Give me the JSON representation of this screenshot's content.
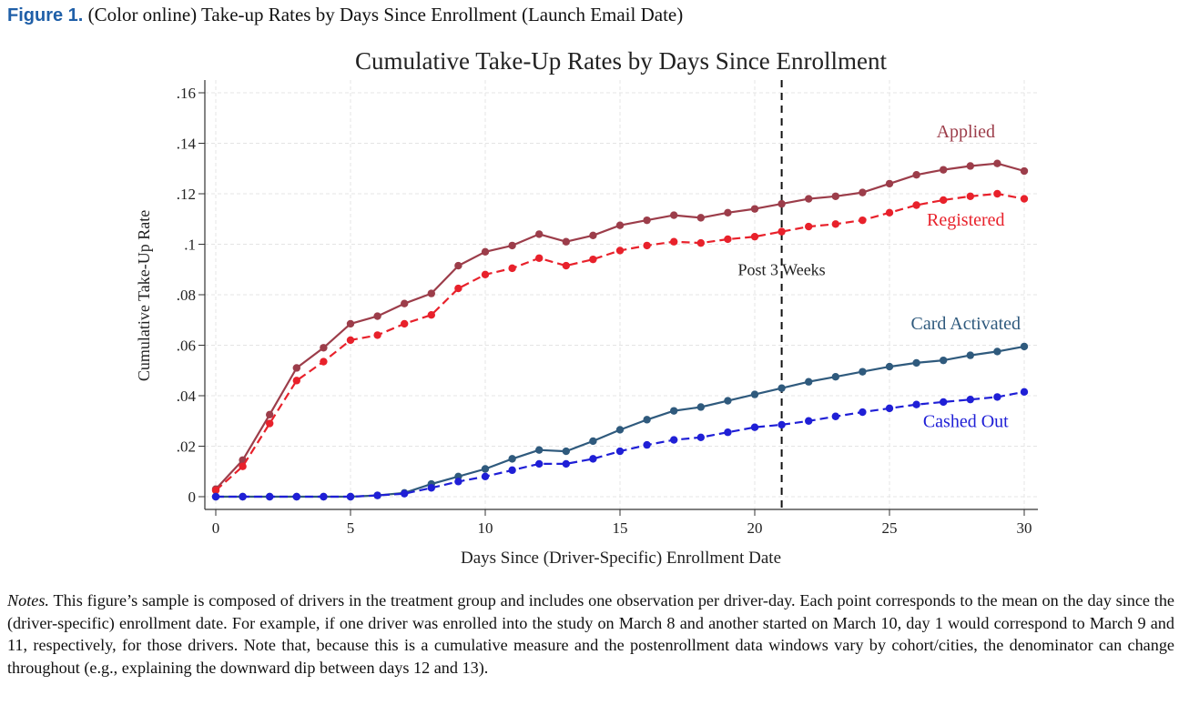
{
  "caption": {
    "label": "Figure 1.",
    "text": "(Color online) Take-up Rates by Days Since Enrollment (Launch Email Date)"
  },
  "notes": {
    "label": "Notes.",
    "text": "This figure’s sample is composed of drivers in the treatment group and includes one observation per driver-day. Each point corresponds to the mean on the day since the (driver-specific) enrollment date. For example, if one driver was enrolled into the study on March 8 and another started on March 10, day 1 would correspond to March 9 and 11, respectively, for those drivers. Note that, because this is a cumulative measure and the postenrollment data windows vary by cohort/cities, the denominator can change throughout (e.g., explaining the downward dip between days 12 and 13)."
  },
  "chart_data": {
    "type": "line",
    "title": "Cumulative Take-Up Rates by Days Since Enrollment",
    "xlabel": "Days Since (Driver-Specific) Enrollment Date",
    "ylabel": "Cumulative Take-Up Rate",
    "xlim": [
      0,
      30
    ],
    "ylim": [
      0,
      0.16
    ],
    "xticks": [
      0,
      5,
      10,
      15,
      20,
      25,
      30
    ],
    "xtick_labels": [
      "0",
      "5",
      "10",
      "15",
      "20",
      "25",
      "30"
    ],
    "yticks": [
      0,
      0.02,
      0.04,
      0.06,
      0.08,
      0.1,
      0.12,
      0.14,
      0.16
    ],
    "ytick_labels": [
      "0",
      ".02",
      ".04",
      ".06",
      ".08",
      ".1",
      ".12",
      ".14",
      ".16"
    ],
    "grid": true,
    "vline": {
      "x": 21,
      "label": "Post 3 Weeks",
      "label_y": 0.09
    },
    "x": [
      0,
      1,
      2,
      3,
      4,
      5,
      6,
      7,
      8,
      9,
      10,
      11,
      12,
      13,
      14,
      15,
      16,
      17,
      18,
      19,
      20,
      21,
      22,
      23,
      24,
      25,
      26,
      27,
      28,
      29,
      30
    ],
    "series": [
      {
        "name": "Applied",
        "color": "#9c3d4a",
        "dash": false,
        "label_at": [
          28,
          0.1445
        ],
        "values": [
          0.003,
          0.0145,
          0.0325,
          0.051,
          0.059,
          0.0685,
          0.0715,
          0.0765,
          0.0805,
          0.0915,
          0.097,
          0.0995,
          0.104,
          0.101,
          0.1035,
          0.1075,
          0.1095,
          0.1115,
          0.1105,
          0.1125,
          0.114,
          0.116,
          0.118,
          0.119,
          0.1205,
          0.124,
          0.1275,
          0.1295,
          0.131,
          0.132,
          0.129
        ]
      },
      {
        "name": "Registered",
        "color": "#e8212b",
        "dash": true,
        "label_at": [
          28,
          0.1095
        ],
        "values": [
          0.0025,
          0.012,
          0.029,
          0.046,
          0.0535,
          0.062,
          0.064,
          0.0685,
          0.072,
          0.0825,
          0.088,
          0.0905,
          0.0945,
          0.0915,
          0.094,
          0.0975,
          0.0995,
          0.101,
          0.1005,
          0.102,
          0.103,
          0.105,
          0.107,
          0.108,
          0.1095,
          0.1125,
          0.1155,
          0.1175,
          0.119,
          0.12,
          0.118
        ]
      },
      {
        "name": "Card Activated",
        "color": "#2f5a7d",
        "dash": false,
        "label_at": [
          28,
          0.0685
        ],
        "values": [
          0,
          0,
          0,
          0,
          0,
          0,
          0.0005,
          0.0015,
          0.005,
          0.008,
          0.011,
          0.015,
          0.0185,
          0.018,
          0.022,
          0.0265,
          0.0305,
          0.034,
          0.0355,
          0.038,
          0.0405,
          0.043,
          0.0455,
          0.0475,
          0.0495,
          0.0515,
          0.053,
          0.054,
          0.056,
          0.0575,
          0.0595
        ]
      },
      {
        "name": "Cashed Out",
        "color": "#1f1fd6",
        "dash": true,
        "label_at": [
          28,
          0.0297
        ],
        "values": [
          0,
          0,
          0,
          0,
          0,
          0,
          0.0005,
          0.0012,
          0.0035,
          0.006,
          0.008,
          0.0105,
          0.013,
          0.013,
          0.015,
          0.018,
          0.0205,
          0.0225,
          0.0235,
          0.0255,
          0.0275,
          0.0285,
          0.03,
          0.0318,
          0.0335,
          0.035,
          0.0365,
          0.0375,
          0.0385,
          0.0395,
          0.0415
        ]
      }
    ]
  }
}
